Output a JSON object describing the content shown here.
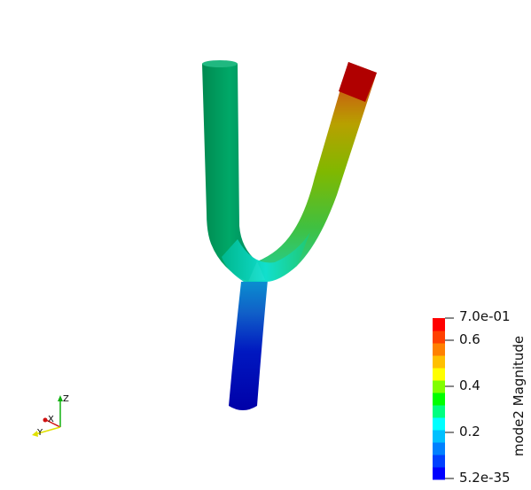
{
  "scalar_bar": {
    "title": "mode2 Magnitude",
    "max_label": "7.0e-01",
    "min_label": "5.2e-35",
    "ticks": [
      "0.6",
      "0.4",
      "0.2"
    ],
    "bands": [
      "#0000ff",
      "#0040ff",
      "#0080ff",
      "#00c0ff",
      "#00ffff",
      "#00ff80",
      "#00ff00",
      "#80ff00",
      "#ffff00",
      "#ffc000",
      "#ff8000",
      "#ff4000",
      "#ff0000"
    ]
  },
  "orientation_axes": {
    "x_label": "X",
    "y_label": "Y",
    "z_label": "Z",
    "x_color": "#d01010",
    "y_color": "#e0e000",
    "z_color": "#10b010"
  },
  "mesh_colors": {
    "left_tube": "#00a060",
    "left_tube_shade": "#007a45",
    "bottom_tube_dark": "#0000b0",
    "bottom_tube_mid": "#0050c8",
    "joint": "#10d8c8",
    "right_low": "#30c850",
    "right_mid": "#8ec000",
    "right_high": "#d07000",
    "right_tip": "#b00000"
  }
}
